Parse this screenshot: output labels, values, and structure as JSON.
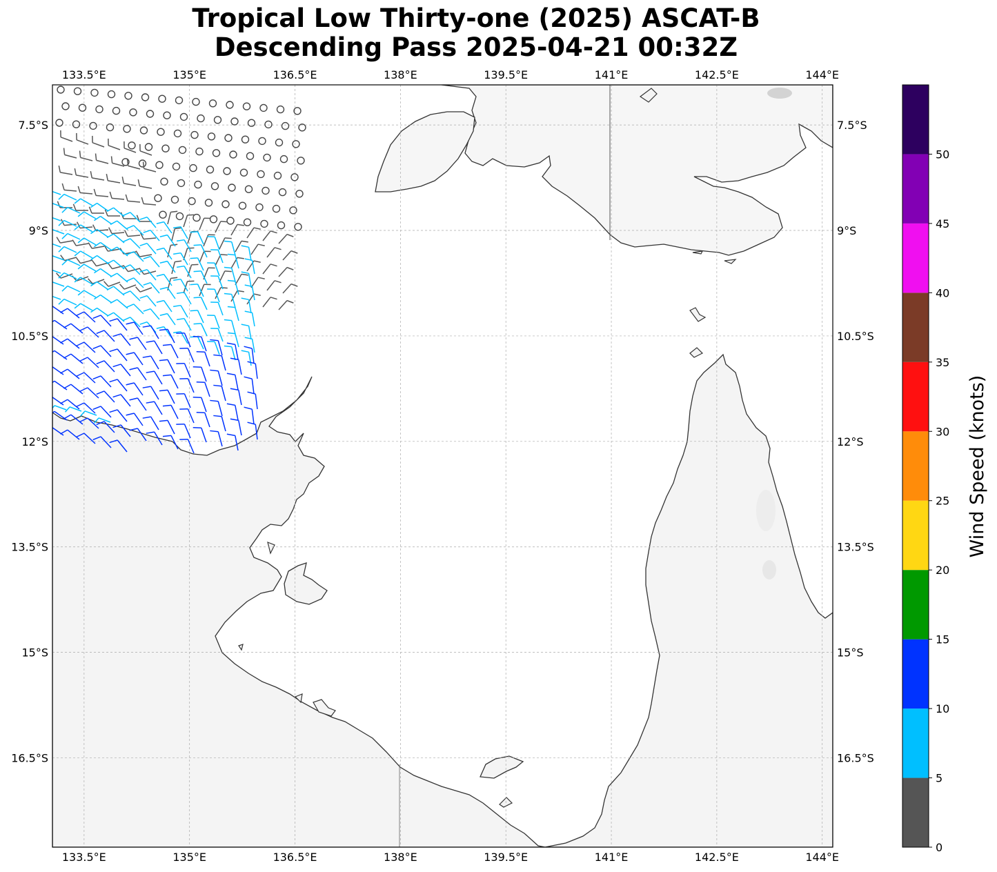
{
  "title": {
    "line1": "Tropical Low Thirty-one (2025) ASCAT-B",
    "line2": "Descending Pass 2025-04-21 00:32Z"
  },
  "map": {
    "lon_range": [
      133.05,
      144.15
    ],
    "lat_range": [
      -17.77,
      -6.93
    ],
    "lon_ticks": [
      "133.5°E",
      "135°E",
      "136.5°E",
      "138°E",
      "139.5°E",
      "141°E",
      "142.5°E",
      "144°E"
    ],
    "lat_ticks": [
      "7.5°S",
      "9°S",
      "10.5°S",
      "12°S",
      "13.5°S",
      "15°S",
      "16.5°S"
    ],
    "grid": true,
    "land_color": "#f5f5f5",
    "ocean_color": "#ffffff",
    "coast_color": "#333333"
  },
  "colorbar": {
    "label": "Wind Speed (knots)",
    "ticks": [
      "0",
      "5",
      "10",
      "15",
      "20",
      "25",
      "30",
      "35",
      "40",
      "45",
      "50"
    ],
    "colors": [
      "#555555",
      "#00bfff",
      "#0033ff",
      "#009900",
      "#ffd713",
      "#ff8c0a",
      "#ff1010",
      "#7b3b27",
      "#f00ff0",
      "#8200b4",
      "#2d005f"
    ]
  },
  "winds": {
    "note_colors": {
      "calm": "#555555",
      "light": "#00bfff",
      "moderate": "#0033ff"
    }
  }
}
